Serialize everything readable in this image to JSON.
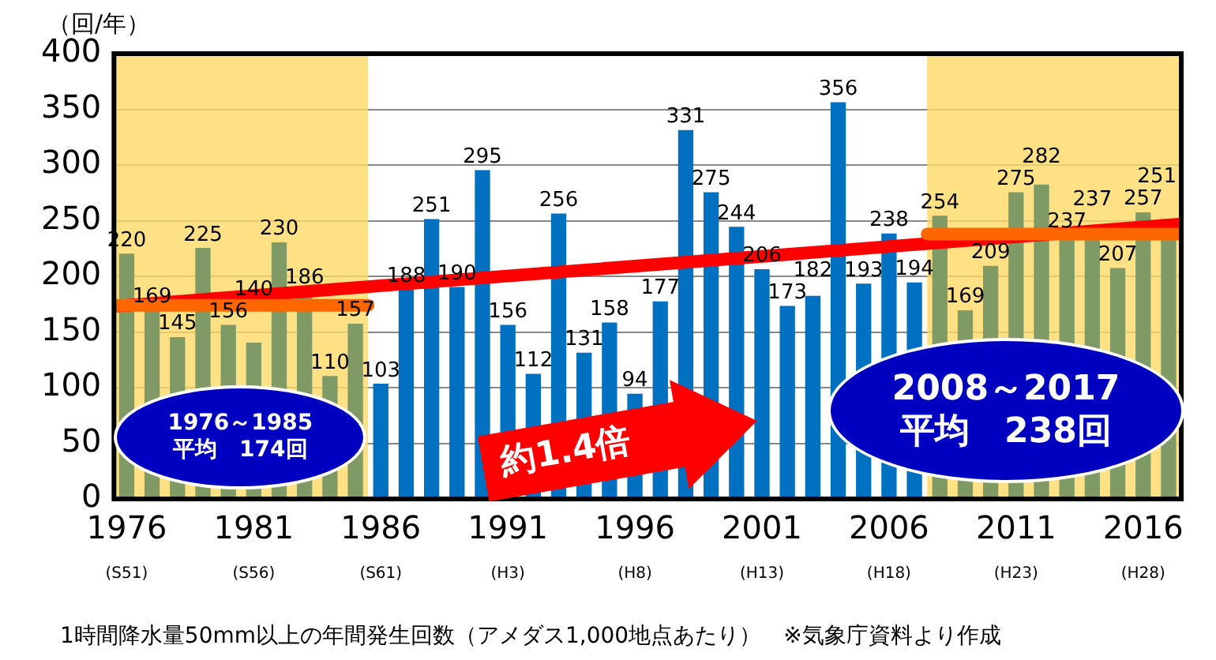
{
  "chart_data": {
    "type": "bar",
    "ylabel": "（回/年）",
    "x": [
      1976,
      1977,
      1978,
      1979,
      1980,
      1981,
      1982,
      1983,
      1984,
      1985,
      1986,
      1987,
      1988,
      1989,
      1990,
      1991,
      1992,
      1993,
      1994,
      1995,
      1996,
      1997,
      1998,
      1999,
      2000,
      2001,
      2002,
      2003,
      2004,
      2005,
      2006,
      2007,
      2008,
      2009,
      2010,
      2011,
      2012,
      2013,
      2014,
      2015,
      2016,
      2017
    ],
    "xlim": [
      1975.5,
      2017.5
    ],
    "xticks": [
      1976,
      1981,
      1986,
      1991,
      1996,
      2001,
      2006,
      2011,
      2016
    ],
    "ylim": [
      0,
      400
    ],
    "yticks": [
      0,
      50,
      100,
      150,
      200,
      250,
      300,
      350,
      400
    ],
    "series": [
      {
        "color": "#0070c0",
        "colors": [
          "#7f9a65",
          "#7f9a65",
          "#7f9a65",
          "#7f9a65",
          "#7f9a65",
          "#7f9a65",
          "#7f9a65",
          "#7f9a65",
          "#7f9a65",
          "#7f9a65",
          "#0070c0",
          "#0070c0",
          "#0070c0",
          "#0070c0",
          "#0070c0",
          "#0070c0",
          "#0070c0",
          "#0070c0",
          "#0070c0",
          "#0070c0",
          "#0070c0",
          "#0070c0",
          "#0070c0",
          "#0070c0",
          "#0070c0",
          "#0070c0",
          "#0070c0",
          "#0070c0",
          "#0070c0",
          "#0070c0",
          "#0070c0",
          "#0070c0",
          "#7f9a65",
          "#7f9a65",
          "#7f9a65",
          "#7f9a65",
          "#7f9a65",
          "#7f9a65",
          "#7f9a65",
          "#7f9a65",
          "#7f9a65",
          "#7f9a65"
        ],
        "values": [
          220,
          169,
          145,
          225,
          156,
          140,
          230,
          186,
          110,
          157,
          103,
          188,
          251,
          190,
          295,
          156,
          112,
          256,
          131,
          158,
          94,
          177,
          331,
          275,
          244,
          206,
          173,
          182,
          356,
          193,
          238,
          194,
          254,
          169,
          209,
          275,
          282,
          237,
          237,
          207,
          257,
          251
        ],
        "value_labels": [
          "220",
          "169",
          "145",
          "225",
          "156",
          "140",
          "230",
          "186",
          "110",
          "157",
          "103",
          "188",
          "251",
          "190",
          "295",
          "156",
          "112",
          "256",
          "131",
          "158",
          "94",
          "177",
          "331",
          "275",
          "244",
          "206",
          "173",
          "182",
          "356",
          "193",
          "238",
          "194",
          "254",
          "169",
          "209",
          "275",
          "282",
          "237",
          "237",
          "207",
          "257",
          "251"
        ]
      },
      {
        "type": "line",
        "color": "#ff6600",
        "x": [
          1975.5,
          1985.5
        ],
        "values": [
          174,
          174
        ]
      },
      {
        "type": "line",
        "color": "#ff6600",
        "x": [
          2007.5,
          2017.5
        ],
        "values": [
          238,
          238
        ]
      },
      {
        "type": "line",
        "color": "#ff0000",
        "x": [
          1975.5,
          2017.5
        ],
        "values": [
          173,
          247
        ]
      }
    ],
    "bands": [
      {
        "axis": "x",
        "from": 1975.5,
        "to": 1985.5,
        "color": "#ffd966",
        "label": "1976～1985\n平均　174回"
      },
      {
        "axis": "x",
        "from": 2007.5,
        "to": 2017.5,
        "color": "#ffd966",
        "label": "2008～2017\n平均　238回"
      }
    ],
    "annotations": [
      "約1.4倍",
      "(S51)",
      "(S56)",
      "(S61)",
      "(H3)",
      "(H8)",
      "(H13)",
      "(H18)",
      "(H23)",
      "(H28)",
      "1時間降水量50mm以上の年間発生回数（アメダス1,000地点あたり）",
      "※気象庁資料より作成"
    ],
    "grid": "y",
    "legend": false,
    "marker": "none"
  }
}
